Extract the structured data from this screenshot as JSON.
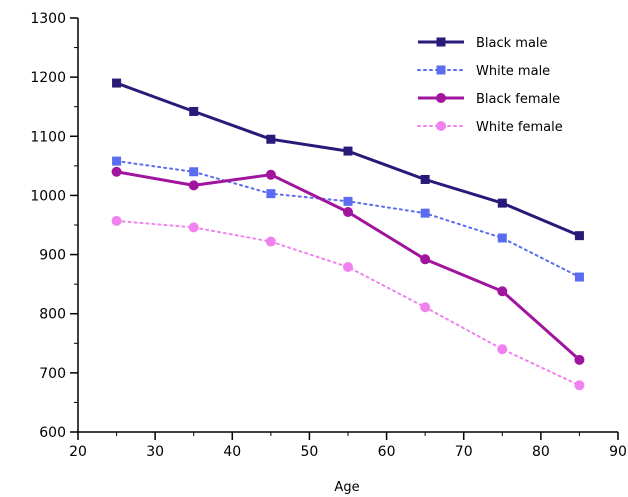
{
  "chart_data": {
    "type": "line",
    "title": "",
    "xlabel": "Age",
    "ylabel": "",
    "xlim": [
      20,
      90
    ],
    "ylim": [
      600,
      1300
    ],
    "xticks": [
      20,
      30,
      40,
      50,
      60,
      70,
      80,
      90
    ],
    "yticks": [
      600,
      700,
      800,
      900,
      1000,
      1100,
      1200,
      1300
    ],
    "grid": false,
    "legend_position": "top-right",
    "x": [
      25,
      35,
      45,
      55,
      65,
      75,
      85
    ],
    "series": [
      {
        "name": "Black male",
        "values": [
          1190,
          1142,
          1095,
          1075,
          1027,
          987,
          932
        ],
        "color": "#2a1a78",
        "line_style": "solid",
        "marker": "square"
      },
      {
        "name": "White male",
        "values": [
          1058,
          1040,
          1003,
          990,
          970,
          928,
          862
        ],
        "color": "#5a6cf0",
        "line_style": "dotted",
        "marker": "square"
      },
      {
        "name": "Black female",
        "values": [
          1040,
          1017,
          1035,
          972,
          892,
          838,
          722
        ],
        "color": "#a0149e",
        "line_style": "solid",
        "marker": "circle"
      },
      {
        "name": "White female",
        "values": [
          957,
          946,
          922,
          879,
          811,
          740,
          679
        ],
        "color": "#f082f0",
        "line_style": "dotted",
        "marker": "circle"
      }
    ]
  }
}
